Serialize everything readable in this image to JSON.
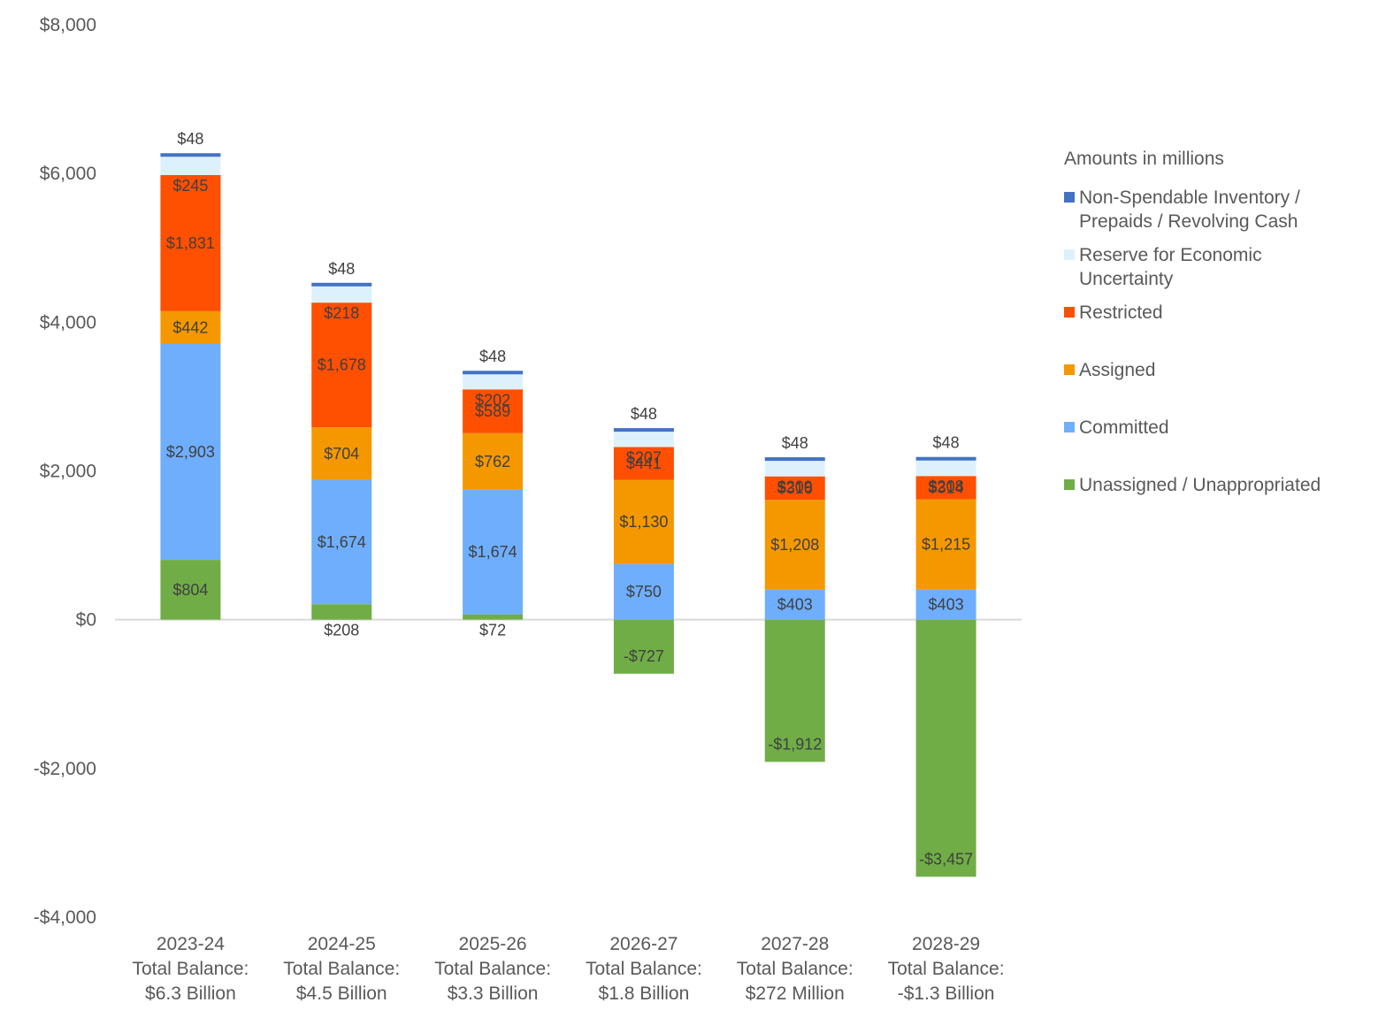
{
  "chart_data": {
    "type": "bar",
    "stacked": true,
    "title": "",
    "xlabel": "",
    "ylabel": "",
    "ylim": [
      -4000,
      8000
    ],
    "yticks": [
      8000,
      6000,
      4000,
      2000,
      0,
      -2000,
      -4000
    ],
    "ytick_labels": [
      "$8,000",
      "$6,000",
      "$4,000",
      "$2,000",
      "$0",
      "-$2,000",
      "-$4,000"
    ],
    "grid": false,
    "legend_position": "right",
    "legend_title": "Amounts in millions",
    "categories": [
      "2023-24",
      "2024-25",
      "2025-26",
      "2026-27",
      "2027-28",
      "2028-29"
    ],
    "category_labels": [
      [
        "2023-24",
        "Total Balance:",
        "$6.3 Billion"
      ],
      [
        "2024-25",
        "Total Balance:",
        "$4.5 Billion"
      ],
      [
        "2025-26",
        "Total Balance:",
        "$3.3 Billion"
      ],
      [
        "2026-27",
        "Total Balance:",
        "$1.8 Billion"
      ],
      [
        "2027-28",
        "Total Balance:",
        "$272 Million"
      ],
      [
        "2028-29",
        "Total Balance:",
        "-$1.3 Billion"
      ]
    ],
    "series": [
      {
        "name": "Unassigned / Unappropriated",
        "color": "#70ad47",
        "values": [
          804,
          208,
          72,
          -727,
          -1912,
          -3457
        ]
      },
      {
        "name": "Committed",
        "color": "#6eaefd",
        "values": [
          2903,
          1674,
          1674,
          750,
          403,
          403
        ]
      },
      {
        "name": "Assigned",
        "color": "#f59800",
        "values": [
          442,
          704,
          762,
          1130,
          1208,
          1215
        ]
      },
      {
        "name": "Restricted",
        "color": "#ff4f00",
        "values": [
          1831,
          1678,
          589,
          441,
          316,
          314
        ]
      },
      {
        "name": "Reserve for Economic Uncertainty",
        "color": "#ddf1fd",
        "values": [
          245,
          218,
          202,
          207,
          209,
          208
        ]
      },
      {
        "name": "Non-Spendable Inventory / Prepaids / Revolving Cash",
        "color": "#4472c4",
        "values": [
          48,
          48,
          48,
          48,
          48,
          48
        ]
      }
    ]
  },
  "legend": {
    "title": "Amounts in millions",
    "items": [
      {
        "lines": [
          "Non-Spendable Inventory /",
          "Prepaids / Revolving Cash"
        ],
        "color": "#4472c4"
      },
      {
        "lines": [
          "Reserve for Economic",
          "Uncertainty"
        ],
        "color": "#ddf1fd"
      },
      {
        "lines": [
          "Restricted"
        ],
        "color": "#ff4f00"
      },
      {
        "lines": [
          "Assigned"
        ],
        "color": "#f59800"
      },
      {
        "lines": [
          "Committed"
        ],
        "color": "#6eaefd"
      },
      {
        "lines": [
          "Unassigned / Unappropriated"
        ],
        "color": "#70ad47"
      }
    ]
  }
}
